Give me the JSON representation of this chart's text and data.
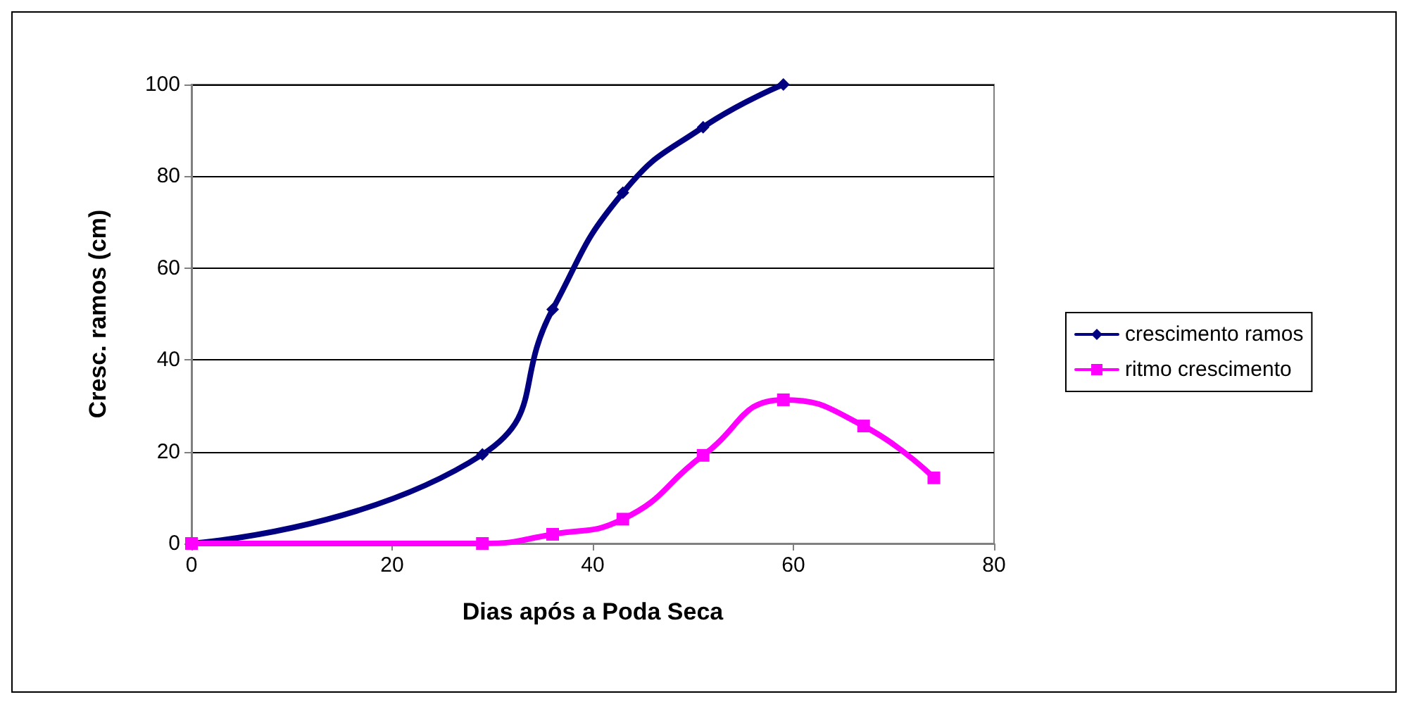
{
  "chart_data": {
    "type": "line",
    "xlabel": "Dias após a Poda Seca",
    "ylabel": "Cresc. ramos (cm)",
    "xlim": [
      0,
      80
    ],
    "xticks": [
      0,
      20,
      40,
      60,
      80
    ],
    "ylim": [
      0,
      100
    ],
    "yticks": [
      0,
      20,
      40,
      60,
      80,
      100
    ],
    "grid": "y",
    "legend": "right",
    "line_style": "solid",
    "series": [
      {
        "name": "crescimento ramos",
        "color": "#000080",
        "marker": "diamond",
        "x": [
          0,
          29,
          36,
          43,
          51,
          59
        ],
        "values": [
          0,
          19.4,
          51,
          76.4,
          90.7,
          100
        ]
      },
      {
        "name": "ritmo crescimento",
        "color": "#ff00ff",
        "marker": "square",
        "x": [
          0,
          29,
          36,
          43,
          51,
          59,
          67,
          74
        ],
        "values": [
          0,
          0,
          2,
          5.3,
          19.2,
          31.3,
          25.6,
          14.3
        ]
      }
    ]
  }
}
